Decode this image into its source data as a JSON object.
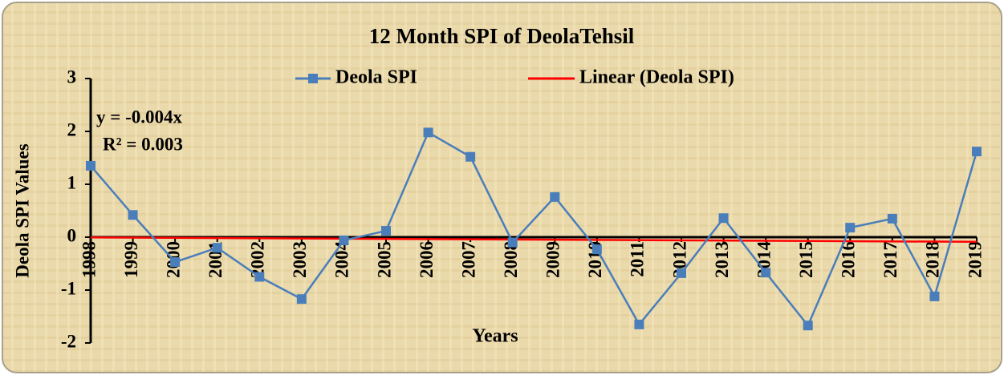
{
  "chart_data": {
    "type": "line",
    "title": "12 Month SPI of DeolaTehsil",
    "x_label": "Years",
    "y_label": "Deola SPI Values",
    "categories": [
      "1998",
      "1999",
      "2000",
      "2001",
      "2002",
      "2003",
      "2004",
      "2005",
      "2006",
      "2007",
      "2008",
      "2009",
      "2010",
      "2011",
      "2012",
      "2013",
      "2014",
      "2015",
      "2016",
      "2017",
      "2018",
      "2019"
    ],
    "series": [
      {
        "name": "Deola SPI",
        "color": "#4a7ebb",
        "values": [
          1.35,
          0.42,
          -0.47,
          -0.2,
          -0.75,
          -1.17,
          -0.06,
          0.12,
          1.98,
          1.52,
          -0.1,
          0.76,
          -0.23,
          -1.65,
          -0.68,
          0.36,
          -0.67,
          -1.67,
          0.18,
          0.35,
          -1.12,
          1.62
        ]
      }
    ],
    "trendline": {
      "name": "Linear (Deola SPI)",
      "color": "#ff0000",
      "slope": -0.004,
      "intercept": 0
    },
    "annotations": [
      "y = -0.004x",
      "R² = 0.003"
    ],
    "ylim": [
      -2,
      3
    ],
    "yticks": [
      -2,
      -1,
      0,
      1,
      2,
      3
    ],
    "legend": "top"
  }
}
